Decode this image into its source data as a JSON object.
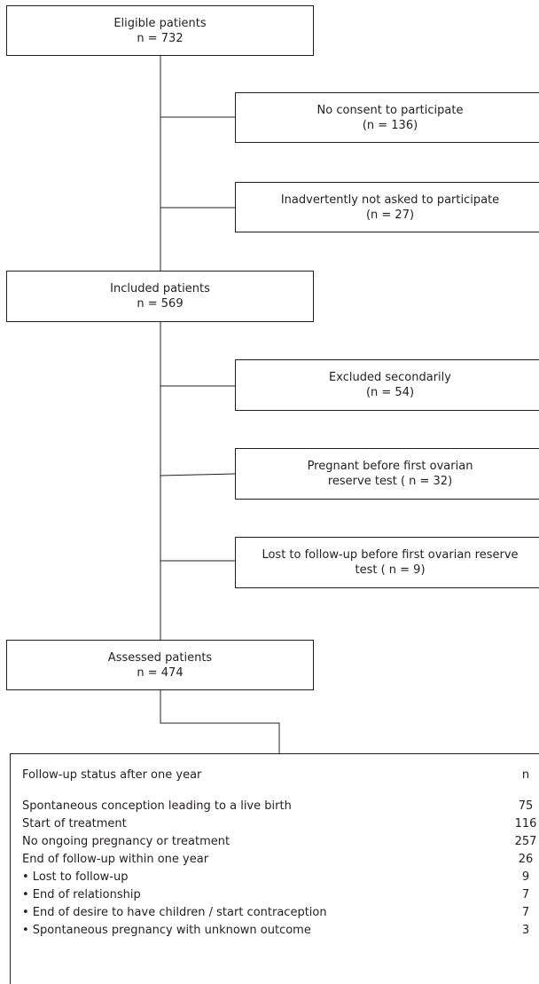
{
  "flow": {
    "eligible": {
      "title": "Eligible patients",
      "count": "n = 732"
    },
    "no_consent": {
      "title": "No consent to participate",
      "count": "(n = 136)"
    },
    "not_asked": {
      "title": "Inadvertently not asked to participate",
      "count": "(n = 27)"
    },
    "included": {
      "title": "Included patients",
      "count": "n = 569"
    },
    "excluded": {
      "title": "Excluded secondarily",
      "count": "(n = 54)"
    },
    "pregnant": {
      "line1": "Pregnant before first ovarian",
      "line2": "reserve test ( n = 32)"
    },
    "lost": {
      "line1": "Lost to follow-up before first ovarian reserve",
      "line2": "test ( n = 9)"
    },
    "assessed": {
      "title": "Assessed patients",
      "count": "n = 474"
    }
  },
  "followup_table": {
    "header": {
      "label": "Follow-up status after one year",
      "value": "n"
    },
    "rows": [
      {
        "label": "Spontaneous conception leading to a live birth",
        "value": "75"
      },
      {
        "label": "Start of treatment",
        "value": "116"
      },
      {
        "label": "No ongoing pregnancy or treatment",
        "value": "257"
      },
      {
        "label": "End of follow-up within one year",
        "value": "26"
      },
      {
        "label": "• Lost to follow-up",
        "value": "9"
      },
      {
        "label": "• End of relationship",
        "value": "7"
      },
      {
        "label": "• End of desire to have children / start contraception",
        "value": "7"
      },
      {
        "label": "• Spontaneous pregnancy with unknown outcome",
        "value": "3"
      }
    ]
  }
}
